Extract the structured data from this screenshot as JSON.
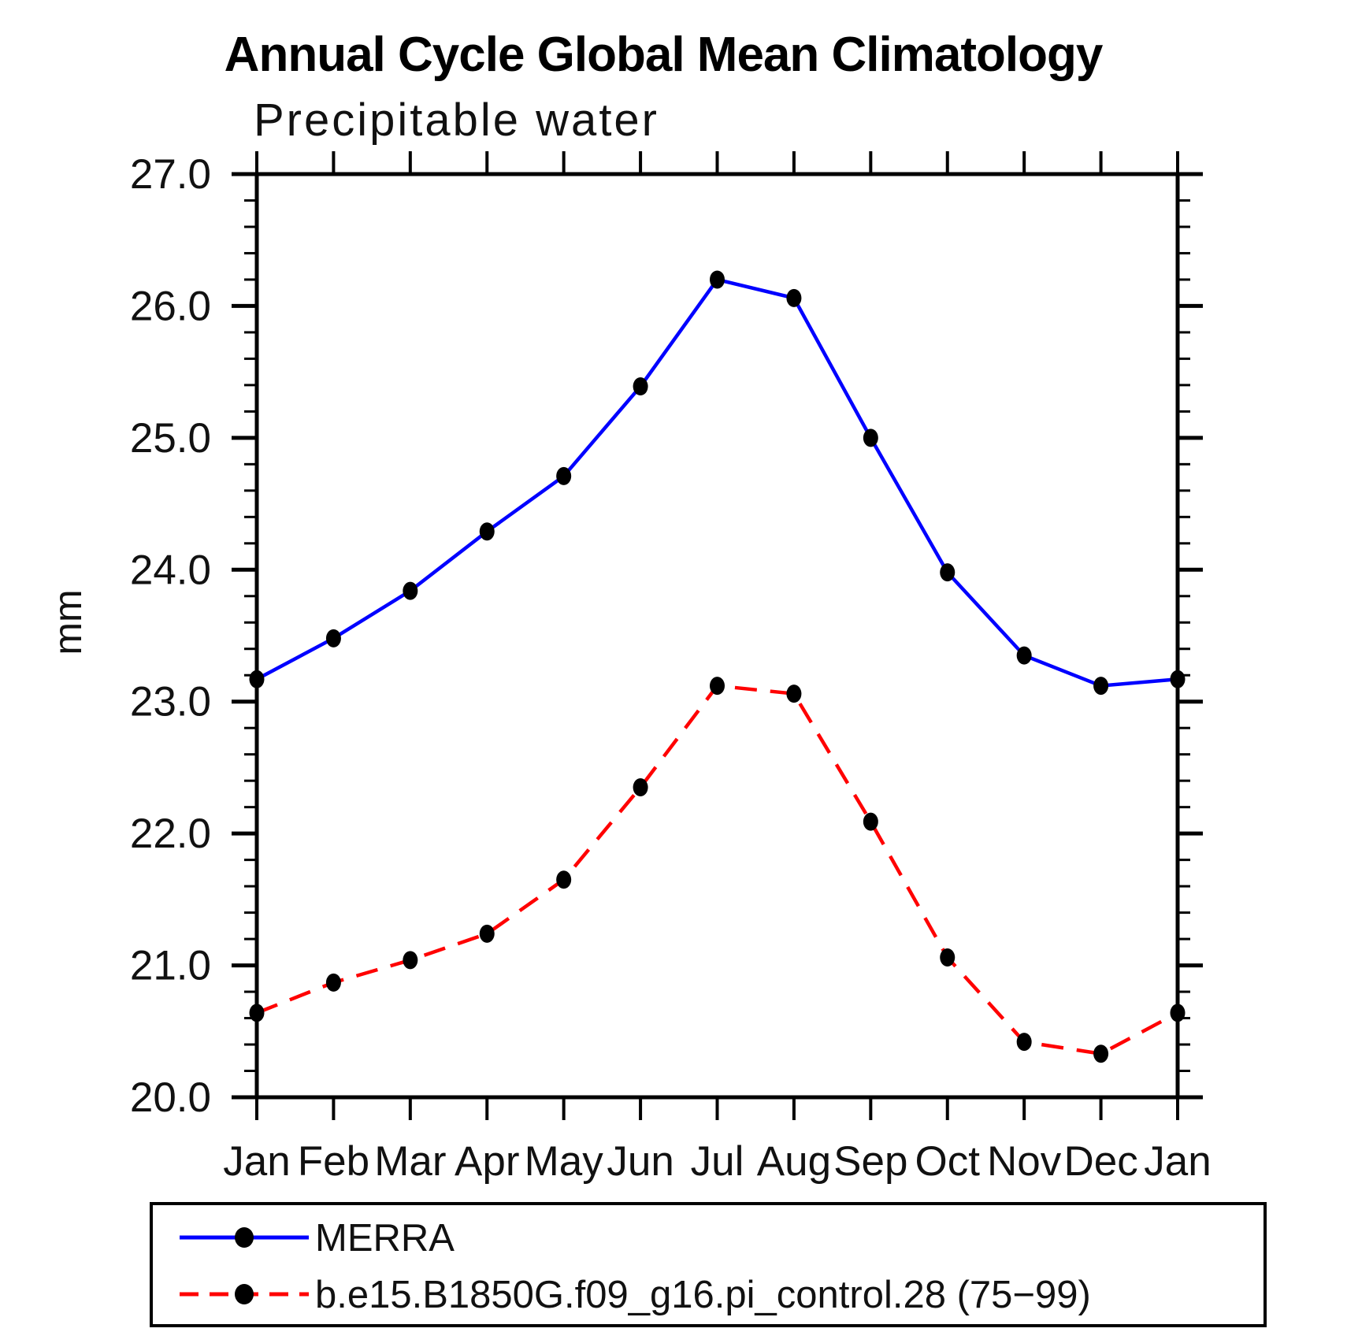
{
  "chart_data": {
    "type": "line",
    "title": "Annual Cycle Global Mean Climatology",
    "subtitle": "Precipitable water",
    "ylabel": "mm",
    "xlabel": "",
    "categories": [
      "Jan",
      "Feb",
      "Mar",
      "Apr",
      "May",
      "Jun",
      "Jul",
      "Aug",
      "Sep",
      "Oct",
      "Nov",
      "Dec",
      "Jan"
    ],
    "series": [
      {
        "name": "MERRA",
        "color": "#0000ff",
        "line_style": "solid",
        "values": [
          23.17,
          23.48,
          23.84,
          24.29,
          24.71,
          25.39,
          26.2,
          26.06,
          25.0,
          23.98,
          23.35,
          23.12,
          23.17
        ]
      },
      {
        "name": "b.e15.B1850G.f09_g16.pi_control.28 (75−99)",
        "color": "#ff0000",
        "line_style": "dashed",
        "values": [
          20.64,
          20.87,
          21.04,
          21.24,
          21.65,
          22.35,
          23.12,
          23.06,
          22.09,
          21.06,
          20.42,
          20.33,
          20.64
        ]
      }
    ],
    "ylim": [
      20.0,
      27.0
    ],
    "ytick_labels": [
      "20.0",
      "21.0",
      "22.0",
      "23.0",
      "24.0",
      "25.0",
      "26.0",
      "27.0"
    ],
    "ytick_major_step": 1.0,
    "ytick_minor_step": 0.2,
    "marker": "filled-circle",
    "marker_color": "#000000",
    "grid": false,
    "legend_position": "bottom-left-box"
  }
}
